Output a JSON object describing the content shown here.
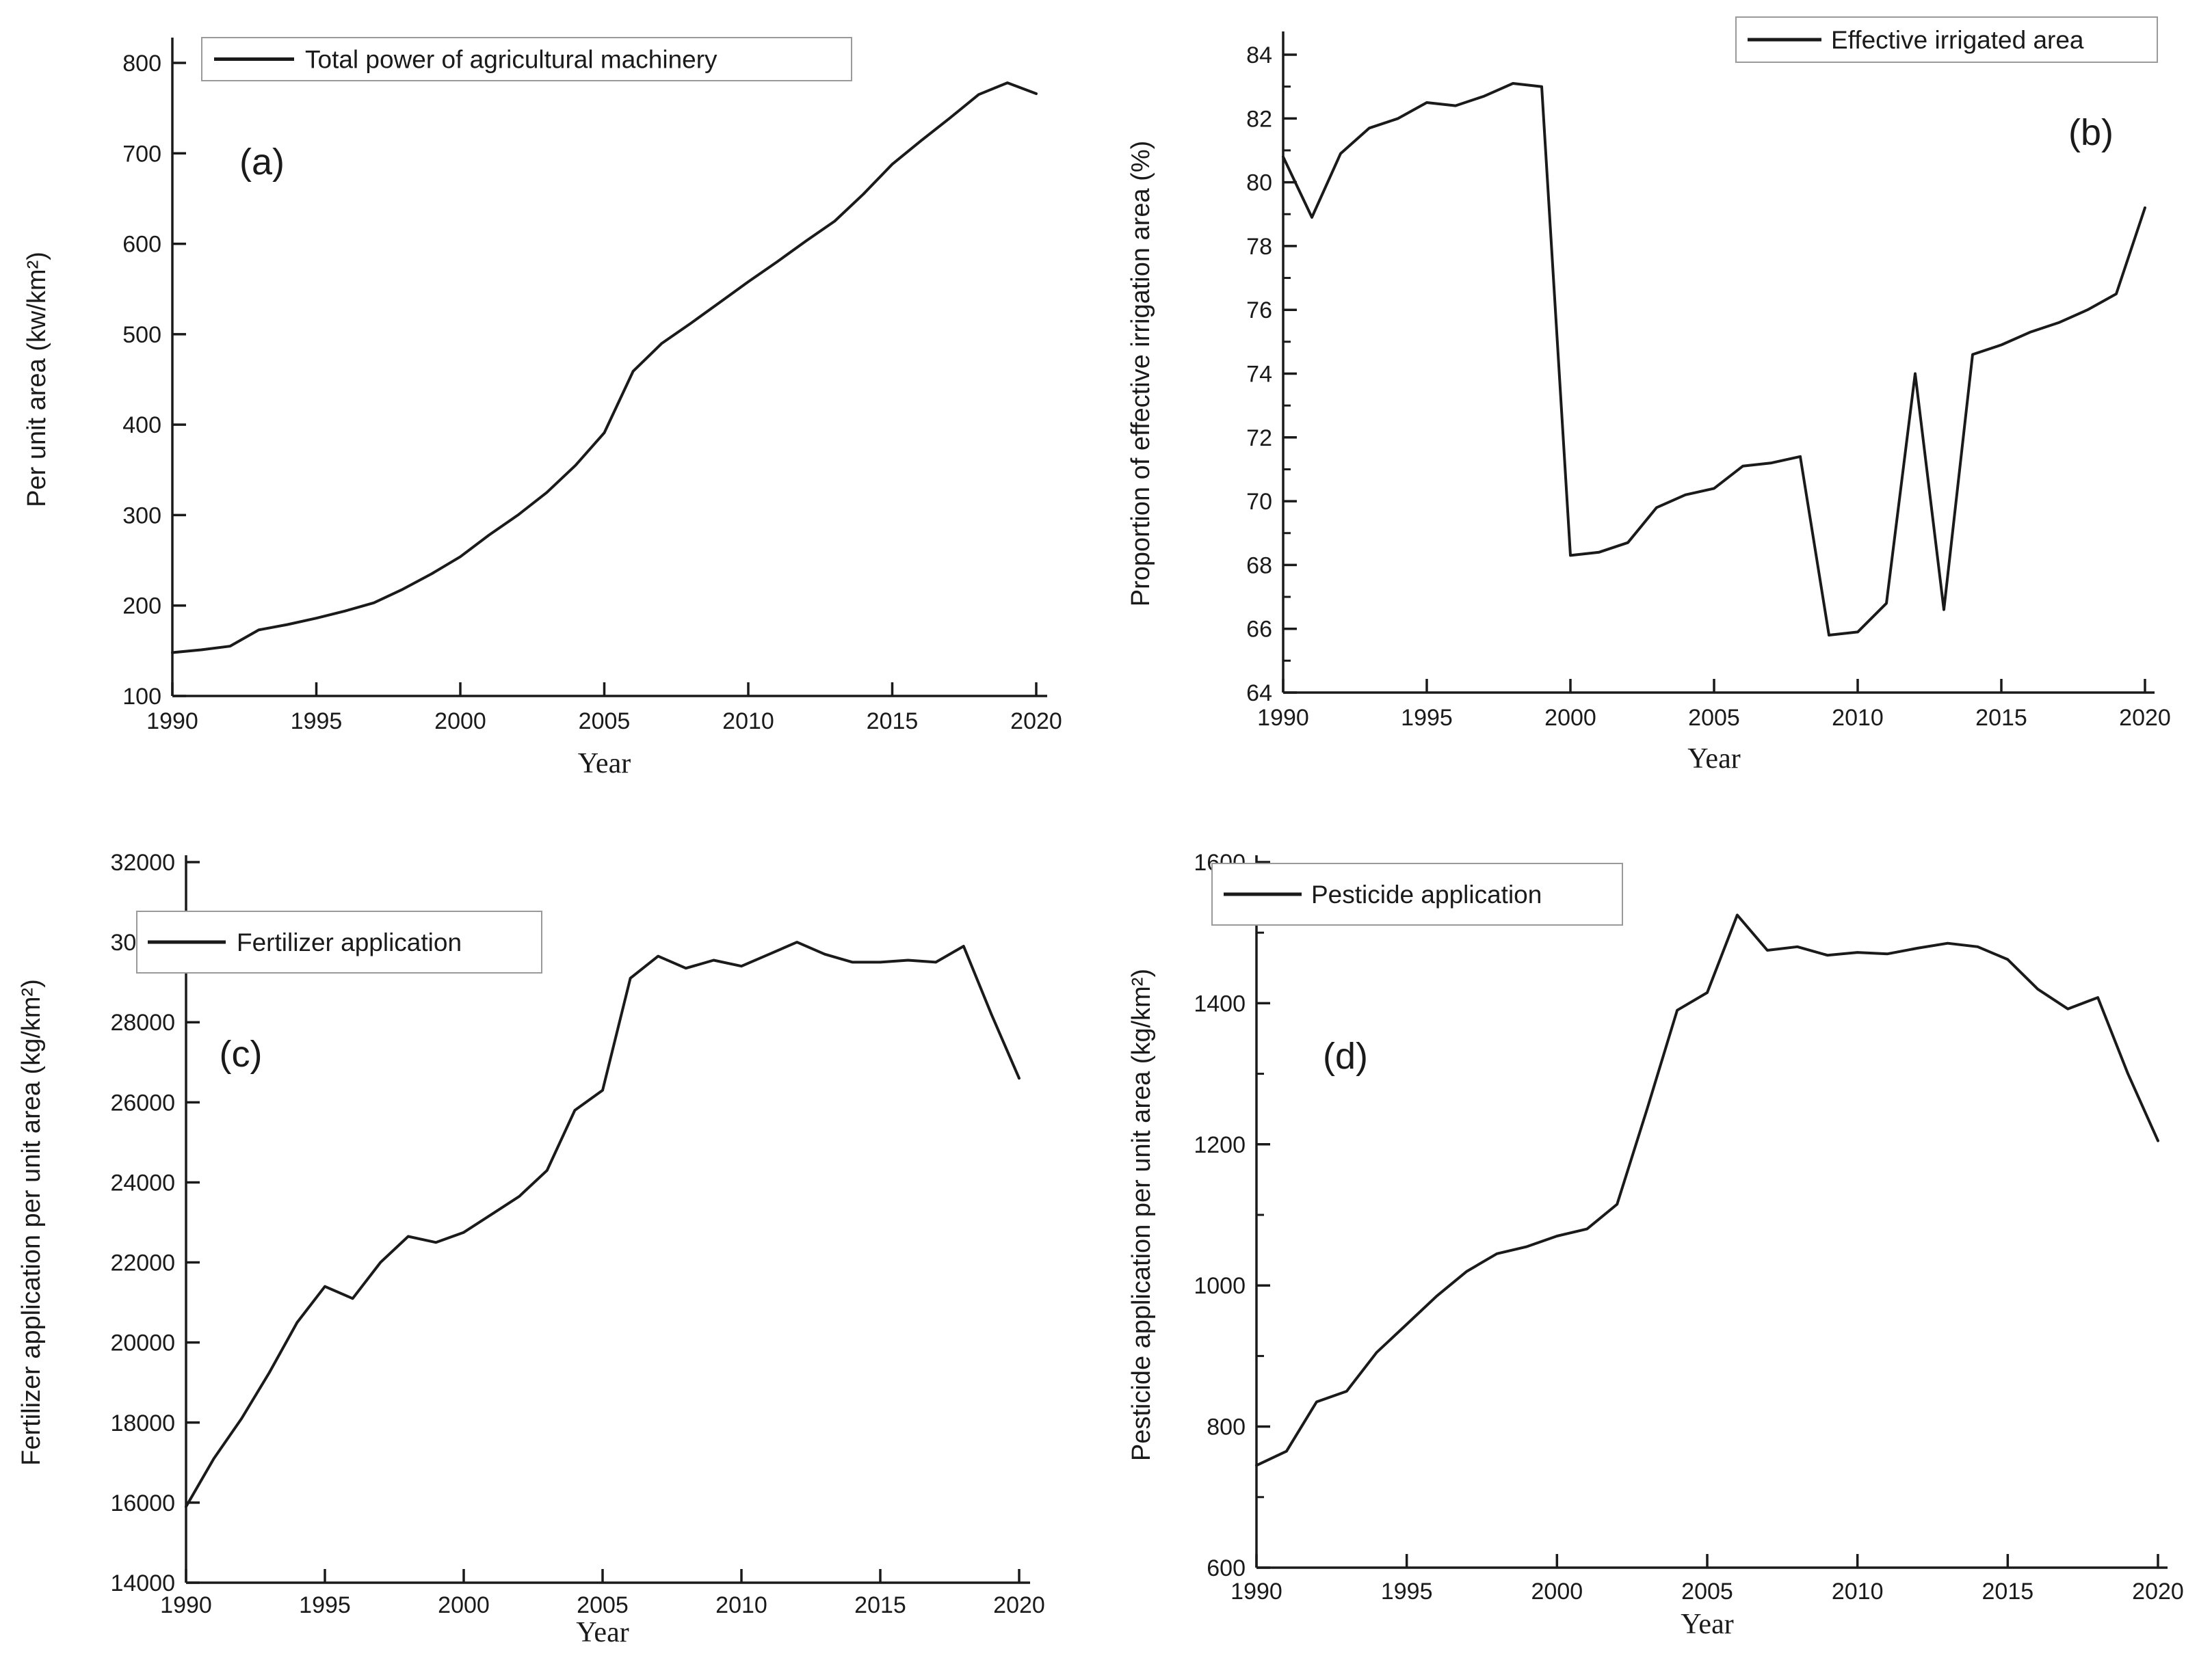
{
  "figure": {
    "background_color": "#ffffff",
    "line_color": "#1a1a1a",
    "axis_color": "#1a1a1a",
    "text_color": "#1a1a1a",
    "legend_border_color": "#9a9a9a"
  },
  "chart_data": [
    {
      "panel_letter": "(a)",
      "type": "line",
      "legend": "Total power of agricultural machinery",
      "legend_position": "top-left",
      "xlabel": "Year",
      "ylabel": "Per unit area (kw/km²)",
      "xlim": [
        1990,
        2020
      ],
      "ylim": [
        100,
        800
      ],
      "xticks": [
        1990,
        1995,
        2000,
        2005,
        2010,
        2015,
        2020
      ],
      "yticks": [
        100,
        200,
        300,
        400,
        500,
        600,
        700,
        800
      ],
      "minor_yticks": [],
      "grid": false,
      "x": [
        1990,
        1991,
        1992,
        1993,
        1994,
        1995,
        1996,
        1997,
        1998,
        1999,
        2000,
        2001,
        2002,
        2003,
        2004,
        2005,
        2006,
        2007,
        2008,
        2009,
        2010,
        2011,
        2012,
        2013,
        2014,
        2015,
        2016,
        2017,
        2018,
        2019,
        2020
      ],
      "values": [
        148,
        151,
        155,
        173,
        179,
        186,
        194,
        203,
        218,
        235,
        254,
        278,
        300,
        325,
        355,
        391,
        459,
        490,
        512,
        535,
        558,
        580,
        603,
        625,
        655,
        688,
        714,
        739,
        765,
        778,
        766
      ]
    },
    {
      "panel_letter": "(b)",
      "type": "line",
      "legend": "Effective irrigated area",
      "legend_position": "top-right",
      "xlabel": "Year",
      "ylabel": "Proportion of effective irrigation area (%)",
      "xlim": [
        1990,
        2020
      ],
      "ylim": [
        64,
        84
      ],
      "xticks": [
        1990,
        1995,
        2000,
        2005,
        2010,
        2015,
        2020
      ],
      "yticks": [
        64,
        66,
        68,
        70,
        72,
        74,
        76,
        78,
        80,
        82,
        84
      ],
      "minor_yticks": [
        65,
        67,
        69,
        71,
        73,
        75,
        77,
        79,
        81,
        83
      ],
      "grid": false,
      "x": [
        1990,
        1991,
        1992,
        1993,
        1994,
        1995,
        1996,
        1997,
        1998,
        1999,
        2000,
        2001,
        2002,
        2003,
        2004,
        2005,
        2006,
        2007,
        2008,
        2009,
        2010,
        2011,
        2012,
        2013,
        2014,
        2015,
        2016,
        2017,
        2018,
        2019,
        2020
      ],
      "values": [
        80.8,
        78.9,
        80.9,
        81.7,
        82.0,
        82.5,
        82.4,
        82.7,
        83.1,
        83.0,
        68.3,
        68.4,
        68.7,
        69.8,
        70.2,
        70.4,
        71.1,
        71.2,
        71.4,
        65.8,
        65.9,
        66.8,
        74.0,
        66.6,
        74.6,
        74.9,
        75.3,
        75.6,
        76.0,
        76.5,
        79.2
      ]
    },
    {
      "panel_letter": "(c)",
      "type": "line",
      "legend": "Fertilizer application",
      "legend_position": "top-left",
      "xlabel": "Year",
      "ylabel": "Fertilizer application per unit area (kg/km²)",
      "xlim": [
        1990,
        2020
      ],
      "ylim": [
        14000,
        32000
      ],
      "xticks": [
        1990,
        1995,
        2000,
        2005,
        2010,
        2015,
        2020
      ],
      "yticks": [
        14000,
        16000,
        18000,
        20000,
        22000,
        24000,
        26000,
        28000,
        30000,
        32000
      ],
      "minor_yticks": [],
      "grid": false,
      "x": [
        1990,
        1991,
        1992,
        1993,
        1994,
        1995,
        1996,
        1997,
        1998,
        1999,
        2000,
        2001,
        2002,
        2003,
        2004,
        2005,
        2006,
        2007,
        2008,
        2009,
        2010,
        2011,
        2012,
        2013,
        2014,
        2015,
        2016,
        2017,
        2018,
        2019,
        2020
      ],
      "values": [
        15900,
        17100,
        18100,
        19250,
        20500,
        21400,
        21100,
        22000,
        22650,
        22500,
        22750,
        23200,
        23650,
        24300,
        25800,
        26300,
        29100,
        29650,
        29350,
        29550,
        29400,
        29700,
        30000,
        29700,
        29500,
        29500,
        29550,
        29500,
        29900,
        28200,
        26600
      ]
    },
    {
      "panel_letter": "(d)",
      "type": "line",
      "legend": "Pesticide application",
      "legend_position": "top-left",
      "xlabel": "Year",
      "ylabel": "Pesticide application per unit area (kg/km²)",
      "xlim": [
        1990,
        2020
      ],
      "ylim": [
        600,
        1600
      ],
      "xticks": [
        1990,
        1995,
        2000,
        2005,
        2010,
        2015,
        2020
      ],
      "yticks": [
        600,
        800,
        1000,
        1200,
        1400,
        1600
      ],
      "minor_yticks": [
        700,
        900,
        1100,
        1300,
        1500
      ],
      "grid": false,
      "x": [
        1990,
        1991,
        1992,
        1993,
        1994,
        1995,
        1996,
        1997,
        1998,
        1999,
        2000,
        2001,
        2002,
        2003,
        2004,
        2005,
        2006,
        2007,
        2008,
        2009,
        2010,
        2011,
        2012,
        2013,
        2014,
        2015,
        2016,
        2017,
        2018,
        2019,
        2020
      ],
      "values": [
        745,
        765,
        835,
        850,
        905,
        945,
        985,
        1020,
        1045,
        1055,
        1070,
        1080,
        1115,
        1250,
        1390,
        1415,
        1525,
        1475,
        1480,
        1468,
        1472,
        1470,
        1478,
        1485,
        1480,
        1462,
        1420,
        1392,
        1408,
        1300,
        1205
      ]
    }
  ]
}
